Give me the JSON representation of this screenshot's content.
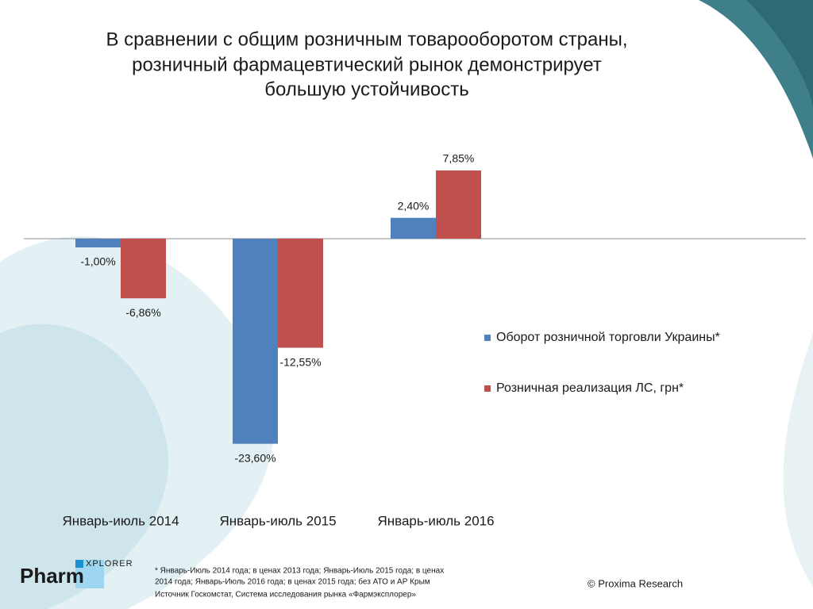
{
  "chart_data": {
    "type": "bar",
    "title": [
      "В сравнении с общим розничным товарооборотом  страны,",
      "розничный фармацевтический рынок  демонстрирует",
      "большую устойчивость"
    ],
    "categories": [
      "Январь-июль 2014",
      "Январь-июль 2015",
      "Январь-июль 2016"
    ],
    "series": [
      {
        "name": "Оборот розничной торговли Украины*",
        "color": "#4f81bd",
        "values": [
          -1.0,
          -23.6,
          2.4
        ],
        "value_labels": [
          "-1,00%",
          "-23,60%",
          "2,40%"
        ]
      },
      {
        "name": "Розничная реализация ЛС, грн*",
        "color": "#c0504d",
        "values": [
          -6.86,
          -12.55,
          7.85
        ],
        "value_labels": [
          "-6,86%",
          "-12,55%",
          "7,85%"
        ]
      }
    ],
    "legend": "right"
  },
  "footnote": [
    "* Январь-Июль 2014 года; в ценах 2013 года; Январь-Июль 2015 года; в ценах",
    "2014 года; Январь-Июль 2016  года; в ценах 2015 года; без АТО и АР Крым"
  ],
  "source": "Источник Госкомстат, Система исследования рынка «Фармэксплорер»",
  "copyright": "© Proxima Research",
  "logo": {
    "main": "Pharm",
    "sub": "XPLORER"
  }
}
